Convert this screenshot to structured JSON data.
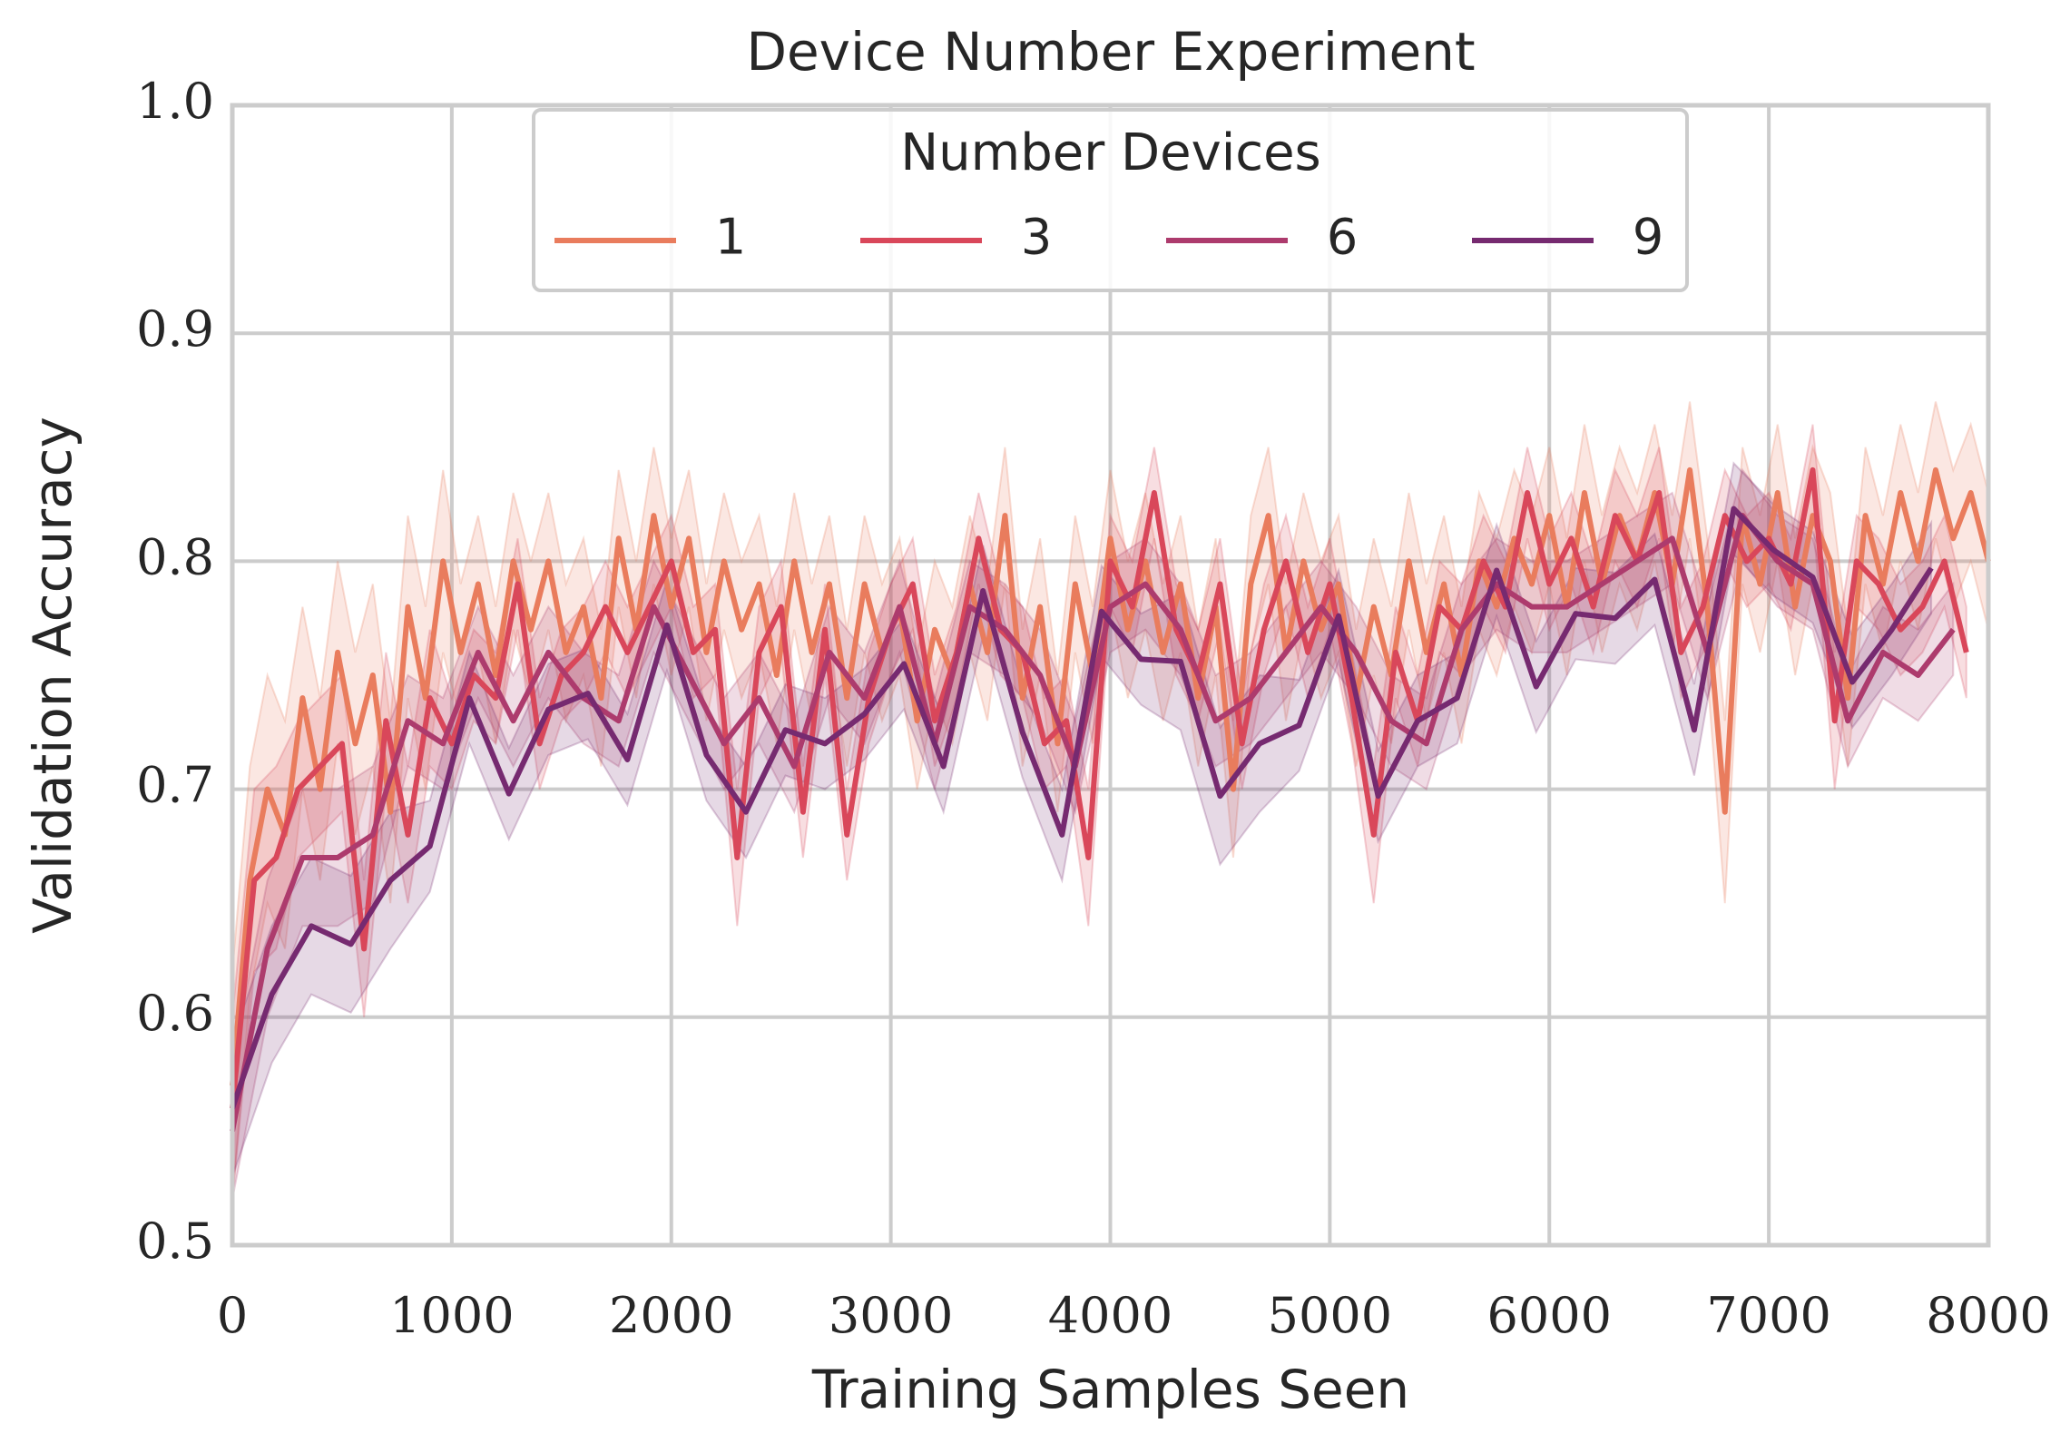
{
  "chart_data": {
    "type": "line",
    "title": "Device Number Experiment",
    "x_label": "Training Samples Seen",
    "y_label": "Validation Accuracy",
    "xlim": [
      0,
      8000
    ],
    "xticks": [
      0,
      1000,
      2000,
      3000,
      4000,
      5000,
      6000,
      7000,
      8000
    ],
    "ylim": [
      0.5,
      1
    ],
    "yticks": [
      0.5,
      0.6,
      0.7,
      0.8,
      0.9,
      {
        "value": 1,
        "label": "1.0"
      }
    ],
    "grid": true,
    "legend_title": "Number Devices",
    "legend_position": "upper center",
    "series": [
      {
        "name": "1",
        "color": "#e97c5d",
        "x": [
          0,
          80,
          160,
          240,
          320,
          400,
          480,
          560,
          640,
          720,
          800,
          880,
          960,
          1040,
          1120,
          1200,
          1280,
          1360,
          1440,
          1520,
          1600,
          1680,
          1760,
          1840,
          1920,
          2000,
          2080,
          2160,
          2240,
          2320,
          2400,
          2480,
          2560,
          2640,
          2720,
          2800,
          2880,
          2960,
          3040,
          3120,
          3200,
          3280,
          3360,
          3440,
          3520,
          3600,
          3680,
          3760,
          3840,
          3920,
          4000,
          4080,
          4160,
          4240,
          4320,
          4400,
          4480,
          4560,
          4640,
          4720,
          4800,
          4880,
          4960,
          5040,
          5120,
          5200,
          5280,
          5360,
          5440,
          5520,
          5600,
          5680,
          5760,
          5840,
          5920,
          6000,
          6080,
          6160,
          6240,
          6320,
          6400,
          6480,
          6560,
          6640,
          6720,
          6800,
          6880,
          6960,
          7040,
          7120,
          7200,
          7280,
          7360,
          7440,
          7520,
          7600,
          7680,
          7760,
          7840,
          7920,
          8000
        ],
        "values": [
          0.57,
          0.66,
          0.7,
          0.68,
          0.74,
          0.7,
          0.76,
          0.72,
          0.75,
          0.69,
          0.78,
          0.74,
          0.8,
          0.76,
          0.79,
          0.75,
          0.8,
          0.77,
          0.8,
          0.76,
          0.78,
          0.74,
          0.81,
          0.77,
          0.82,
          0.78,
          0.81,
          0.76,
          0.8,
          0.77,
          0.79,
          0.75,
          0.8,
          0.76,
          0.79,
          0.74,
          0.79,
          0.76,
          0.78,
          0.73,
          0.77,
          0.75,
          0.79,
          0.76,
          0.82,
          0.74,
          0.78,
          0.72,
          0.79,
          0.75,
          0.81,
          0.77,
          0.8,
          0.76,
          0.79,
          0.74,
          0.78,
          0.7,
          0.79,
          0.82,
          0.76,
          0.8,
          0.77,
          0.79,
          0.74,
          0.78,
          0.75,
          0.8,
          0.76,
          0.79,
          0.75,
          0.8,
          0.78,
          0.81,
          0.79,
          0.82,
          0.78,
          0.83,
          0.79,
          0.82,
          0.8,
          0.83,
          0.79,
          0.84,
          0.78,
          0.69,
          0.82,
          0.79,
          0.83,
          0.78,
          0.82,
          0.8,
          0.74,
          0.82,
          0.79,
          0.83,
          0.8,
          0.84,
          0.81,
          0.83,
          0.8
        ],
        "errors": [
          0.05,
          0.05,
          0.05,
          0.05,
          0.04,
          0.04,
          0.04,
          0.04,
          0.04,
          0.04,
          0.04,
          0.04,
          0.04,
          0.03,
          0.03,
          0.03,
          0.03,
          0.03,
          0.03,
          0.03,
          0.03,
          0.03,
          0.03,
          0.03,
          0.03,
          0.03,
          0.03,
          0.03,
          0.03,
          0.03,
          0.03,
          0.03,
          0.03,
          0.03,
          0.03,
          0.03,
          0.03,
          0.03,
          0.03,
          0.03,
          0.03,
          0.03,
          0.03,
          0.03,
          0.03,
          0.03,
          0.03,
          0.03,
          0.03,
          0.03,
          0.03,
          0.03,
          0.03,
          0.03,
          0.03,
          0.03,
          0.03,
          0.03,
          0.03,
          0.03,
          0.03,
          0.03,
          0.03,
          0.03,
          0.03,
          0.03,
          0.03,
          0.03,
          0.03,
          0.03,
          0.03,
          0.03,
          0.03,
          0.03,
          0.03,
          0.03,
          0.03,
          0.03,
          0.03,
          0.03,
          0.03,
          0.03,
          0.03,
          0.03,
          0.03,
          0.04,
          0.03,
          0.03,
          0.03,
          0.03,
          0.03,
          0.03,
          0.03,
          0.03,
          0.03,
          0.03,
          0.03,
          0.03,
          0.03,
          0.03,
          0.03
        ]
      },
      {
        "name": "3",
        "color": "#d9475a",
        "x": [
          0,
          100,
          200,
          300,
          400,
          500,
          600,
          700,
          800,
          900,
          1000,
          1100,
          1200,
          1300,
          1400,
          1500,
          1600,
          1700,
          1800,
          1900,
          2000,
          2100,
          2200,
          2300,
          2400,
          2500,
          2600,
          2700,
          2800,
          2900,
          3000,
          3100,
          3200,
          3300,
          3400,
          3500,
          3600,
          3700,
          3800,
          3900,
          4000,
          4100,
          4200,
          4300,
          4400,
          4500,
          4600,
          4700,
          4800,
          4900,
          5000,
          5100,
          5200,
          5300,
          5400,
          5500,
          5600,
          5700,
          5800,
          5900,
          6000,
          6100,
          6200,
          6300,
          6400,
          6500,
          6600,
          6700,
          6800,
          6900,
          7000,
          7100,
          7200,
          7300,
          7400,
          7500,
          7600,
          7700,
          7800,
          7900
        ],
        "values": [
          0.56,
          0.66,
          0.67,
          0.7,
          0.71,
          0.72,
          0.63,
          0.73,
          0.68,
          0.74,
          0.72,
          0.75,
          0.74,
          0.79,
          0.72,
          0.75,
          0.76,
          0.78,
          0.76,
          0.78,
          0.8,
          0.76,
          0.77,
          0.67,
          0.76,
          0.78,
          0.69,
          0.77,
          0.68,
          0.74,
          0.77,
          0.79,
          0.73,
          0.76,
          0.81,
          0.77,
          0.76,
          0.72,
          0.73,
          0.67,
          0.8,
          0.78,
          0.83,
          0.77,
          0.75,
          0.79,
          0.72,
          0.77,
          0.8,
          0.76,
          0.79,
          0.74,
          0.68,
          0.76,
          0.73,
          0.78,
          0.77,
          0.8,
          0.78,
          0.83,
          0.79,
          0.81,
          0.78,
          0.82,
          0.8,
          0.83,
          0.76,
          0.78,
          0.82,
          0.8,
          0.81,
          0.79,
          0.84,
          0.73,
          0.8,
          0.79,
          0.77,
          0.78,
          0.8,
          0.76
        ],
        "errors": [
          0.04,
          0.04,
          0.04,
          0.03,
          0.03,
          0.03,
          0.03,
          0.03,
          0.03,
          0.03,
          0.02,
          0.02,
          0.02,
          0.02,
          0.02,
          0.02,
          0.02,
          0.02,
          0.02,
          0.02,
          0.02,
          0.02,
          0.02,
          0.03,
          0.02,
          0.02,
          0.02,
          0.02,
          0.02,
          0.02,
          0.02,
          0.02,
          0.02,
          0.02,
          0.02,
          0.02,
          0.02,
          0.02,
          0.02,
          0.03,
          0.02,
          0.02,
          0.02,
          0.02,
          0.02,
          0.02,
          0.02,
          0.02,
          0.02,
          0.02,
          0.02,
          0.02,
          0.03,
          0.02,
          0.02,
          0.02,
          0.02,
          0.02,
          0.02,
          0.02,
          0.02,
          0.02,
          0.02,
          0.02,
          0.02,
          0.02,
          0.02,
          0.02,
          0.02,
          0.02,
          0.02,
          0.02,
          0.02,
          0.03,
          0.02,
          0.02,
          0.02,
          0.02,
          0.02,
          0.02
        ]
      },
      {
        "name": "6",
        "color": "#ad3b6d",
        "x": [
          0,
          160,
          320,
          480,
          640,
          800,
          960,
          1120,
          1280,
          1440,
          1600,
          1760,
          1920,
          2080,
          2240,
          2400,
          2560,
          2720,
          2880,
          3040,
          3200,
          3360,
          3520,
          3680,
          3840,
          4000,
          4160,
          4320,
          4480,
          4640,
          4800,
          4960,
          5120,
          5280,
          5440,
          5600,
          5760,
          5920,
          6080,
          6240,
          6400,
          6560,
          6720,
          6880,
          7040,
          7200,
          7360,
          7520,
          7680,
          7840
        ],
        "values": [
          0.55,
          0.63,
          0.67,
          0.67,
          0.68,
          0.73,
          0.72,
          0.76,
          0.73,
          0.76,
          0.74,
          0.73,
          0.78,
          0.75,
          0.72,
          0.74,
          0.71,
          0.76,
          0.74,
          0.78,
          0.72,
          0.78,
          0.77,
          0.75,
          0.71,
          0.78,
          0.79,
          0.77,
          0.73,
          0.74,
          0.76,
          0.78,
          0.76,
          0.73,
          0.72,
          0.77,
          0.79,
          0.78,
          0.78,
          0.79,
          0.8,
          0.81,
          0.76,
          0.82,
          0.8,
          0.79,
          0.73,
          0.76,
          0.75,
          0.77
        ],
        "errors": [
          0.03,
          0.03,
          0.03,
          0.03,
          0.03,
          0.02,
          0.02,
          0.02,
          0.02,
          0.02,
          0.02,
          0.02,
          0.02,
          0.02,
          0.02,
          0.02,
          0.02,
          0.02,
          0.02,
          0.02,
          0.02,
          0.02,
          0.02,
          0.02,
          0.02,
          0.02,
          0.02,
          0.02,
          0.02,
          0.02,
          0.02,
          0.02,
          0.02,
          0.02,
          0.02,
          0.02,
          0.02,
          0.02,
          0.02,
          0.02,
          0.02,
          0.02,
          0.02,
          0.02,
          0.02,
          0.02,
          0.02,
          0.02,
          0.02,
          0.02
        ]
      },
      {
        "name": "9",
        "color": "#762a70",
        "x": [
          0,
          180,
          360,
          540,
          720,
          900,
          1080,
          1260,
          1440,
          1620,
          1800,
          1980,
          2160,
          2340,
          2520,
          2700,
          2880,
          3060,
          3240,
          3420,
          3600,
          3780,
          3960,
          4140,
          4320,
          4500,
          4680,
          4860,
          5040,
          5220,
          5400,
          5580,
          5760,
          5940,
          6120,
          6300,
          6480,
          6660,
          6840,
          7020,
          7200,
          7380,
          7560,
          7740
        ],
        "values": [
          0.56,
          0.61,
          0.64,
          0.632,
          0.66,
          0.675,
          0.74,
          0.698,
          0.735,
          0.742,
          0.713,
          0.772,
          0.715,
          0.69,
          0.726,
          0.72,
          0.733,
          0.755,
          0.71,
          0.787,
          0.725,
          0.68,
          0.778,
          0.757,
          0.756,
          0.697,
          0.72,
          0.728,
          0.776,
          0.697,
          0.73,
          0.74,
          0.796,
          0.745,
          0.777,
          0.775,
          0.792,
          0.726,
          0.823,
          0.805,
          0.793,
          0.747,
          0.77,
          0.797
        ],
        "errors": [
          0.03,
          0.03,
          0.03,
          0.03,
          0.03,
          0.02,
          0.02,
          0.02,
          0.02,
          0.02,
          0.02,
          0.02,
          0.02,
          0.02,
          0.02,
          0.02,
          0.02,
          0.02,
          0.02,
          0.02,
          0.02,
          0.02,
          0.02,
          0.02,
          0.03,
          0.03,
          0.03,
          0.02,
          0.02,
          0.02,
          0.02,
          0.02,
          0.02,
          0.02,
          0.02,
          0.02,
          0.02,
          0.02,
          0.02,
          0.02,
          0.02,
          0.02,
          0.02,
          0.02
        ]
      }
    ]
  }
}
